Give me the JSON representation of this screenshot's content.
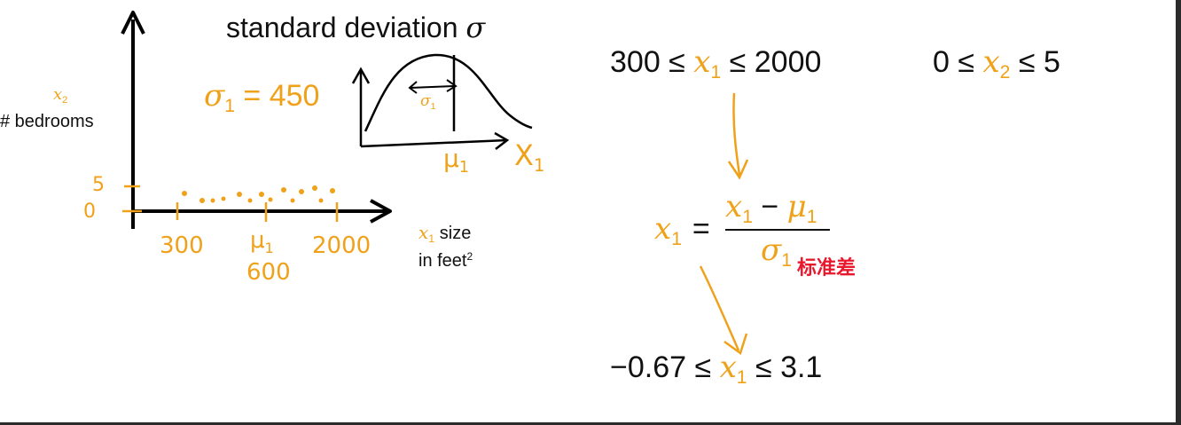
{
  "graph": {
    "title_text": "standard deviation ",
    "title_sigma": "σ",
    "sigma1_lhs": "σ",
    "sigma1_sub": "1",
    "sigma1_rhs": " = 450",
    "curve_sigma": "σ",
    "curve_sigma_sub": "1",
    "mu_label": "μ",
    "mu_sub": "1",
    "x1_curve": "X",
    "x1_curve_sub": "1",
    "y_var": "x",
    "y_var_sub": "2",
    "y_label": "# bedrooms",
    "tick_5": "5",
    "tick_0": "0",
    "x_tick_300": "300",
    "x_tick_mu": "μ",
    "x_tick_mu_sub": "1",
    "x_tick_2000": "2000",
    "x_tick_600": "600",
    "x_var": "x",
    "x_var_sub": "1",
    "x_label_size": " size",
    "x_label_unit": "in feet",
    "x_label_sup": "2"
  },
  "equations": {
    "range1_left": "300 ≤ ",
    "range1_var": "x",
    "range1_sub": "1",
    "range1_right": " ≤ 2000",
    "range2_left": "0 ≤ ",
    "range2_var": "x",
    "range2_sub": "2",
    "range2_right": " ≤ 5",
    "norm_lhs_var": "x",
    "norm_lhs_sub": "1",
    "norm_eq": "=",
    "norm_num_var": "x",
    "norm_num_sub": "1",
    "norm_num_minus": " − ",
    "norm_num_mu": "μ",
    "norm_num_mu_sub": "1",
    "norm_den_var": "σ",
    "norm_den_sub": "1",
    "norm_annotation": "标准差",
    "result_left": "−0.67 ≤ ",
    "result_var": "x",
    "result_sub": "1",
    "result_right": " ≤ 3.1"
  },
  "colors": {
    "accent": "#f0a11a",
    "ink": "#111111",
    "annotation": "#e8192c"
  }
}
